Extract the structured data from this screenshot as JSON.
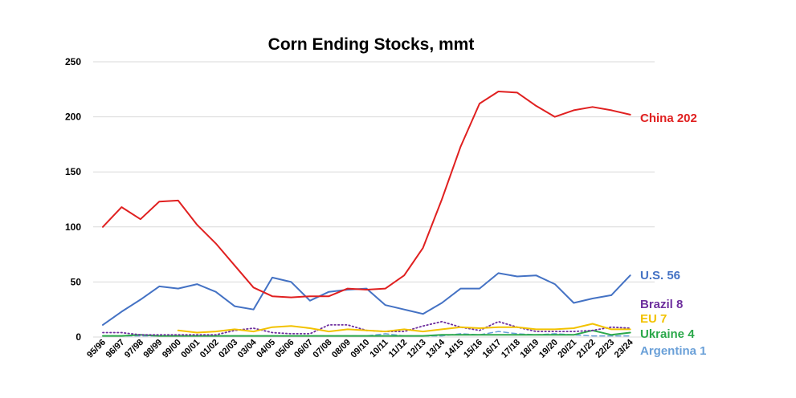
{
  "chart_data": {
    "type": "line",
    "title": "Corn Ending Stocks, mmt",
    "xlabel": "",
    "ylabel": "",
    "ylim": [
      0,
      250
    ],
    "yticks": [
      0,
      50,
      100,
      150,
      200,
      250
    ],
    "grid": "horizontal",
    "legend": "right-end labels",
    "categories": [
      "95/96",
      "96/97",
      "97/98",
      "98/99",
      "99/00",
      "00/01",
      "01/02",
      "02/03",
      "03/04",
      "04/05",
      "05/06",
      "06/07",
      "07/08",
      "08/09",
      "09/10",
      "10/11",
      "11/12",
      "12/13",
      "13/14",
      "14/15",
      "15/16",
      "16/17",
      "17/18",
      "18/19",
      "19/20",
      "20/21",
      "21/22",
      "22/23",
      "23/24"
    ],
    "series": [
      {
        "name": "China",
        "label": "China 202",
        "color": "#e02020",
        "style": "solid",
        "width": 2,
        "values": [
          100,
          118,
          107,
          123,
          124,
          102,
          85,
          65,
          45,
          37,
          36,
          37,
          37,
          44,
          43,
          44,
          56,
          81,
          125,
          173,
          212,
          223,
          222,
          210,
          200,
          206,
          209,
          206,
          202
        ]
      },
      {
        "name": "U.S.",
        "label": "U.S. 56",
        "color": "#4472c4",
        "style": "solid",
        "width": 2,
        "values": [
          11,
          23,
          34,
          46,
          44,
          48,
          41,
          28,
          25,
          54,
          50,
          33,
          41,
          43,
          44,
          29,
          25,
          21,
          31,
          44,
          44,
          58,
          55,
          56,
          48,
          31,
          35,
          38,
          56
        ]
      },
      {
        "name": "Brazil",
        "label": "Brazil 8",
        "color": "#6e2f9e",
        "style": "dotted",
        "width": 1.8,
        "values": [
          4,
          4,
          2,
          2,
          2,
          2,
          2,
          6,
          8,
          4,
          3,
          3,
          11,
          11,
          6,
          5,
          5,
          10,
          14,
          9,
          6,
          14,
          9,
          5,
          5,
          5,
          6,
          9,
          8
        ]
      },
      {
        "name": "EU",
        "label": "EU 7",
        "color": "#f2c200",
        "style": "solid",
        "width": 2,
        "values": [
          null,
          null,
          null,
          null,
          6,
          4,
          5,
          7,
          5,
          9,
          10,
          8,
          5,
          7,
          6,
          5,
          7,
          5,
          7,
          9,
          8,
          9,
          9,
          7,
          7,
          8,
          12,
          7,
          7
        ]
      },
      {
        "name": "Ukraine",
        "label": "Ukraine 4",
        "color": "#2ba84a",
        "style": "solid",
        "width": 2,
        "values": [
          1,
          1,
          2,
          1,
          1,
          1,
          1,
          1,
          1,
          1,
          1,
          1,
          1,
          1,
          1,
          1,
          1,
          1,
          2,
          2,
          2,
          2,
          2,
          2,
          2,
          2,
          6,
          2,
          4
        ]
      },
      {
        "name": "Argentina",
        "label": "Argentina 1",
        "color": "#6aa0d8",
        "style": "dashed",
        "width": 1.5,
        "values": [
          1,
          1,
          1,
          1,
          1,
          1,
          1,
          1,
          1,
          1,
          1,
          1,
          1,
          1,
          1,
          3,
          1,
          1,
          1,
          3,
          2,
          5,
          3,
          2,
          3,
          2,
          1,
          1,
          1
        ]
      }
    ]
  }
}
